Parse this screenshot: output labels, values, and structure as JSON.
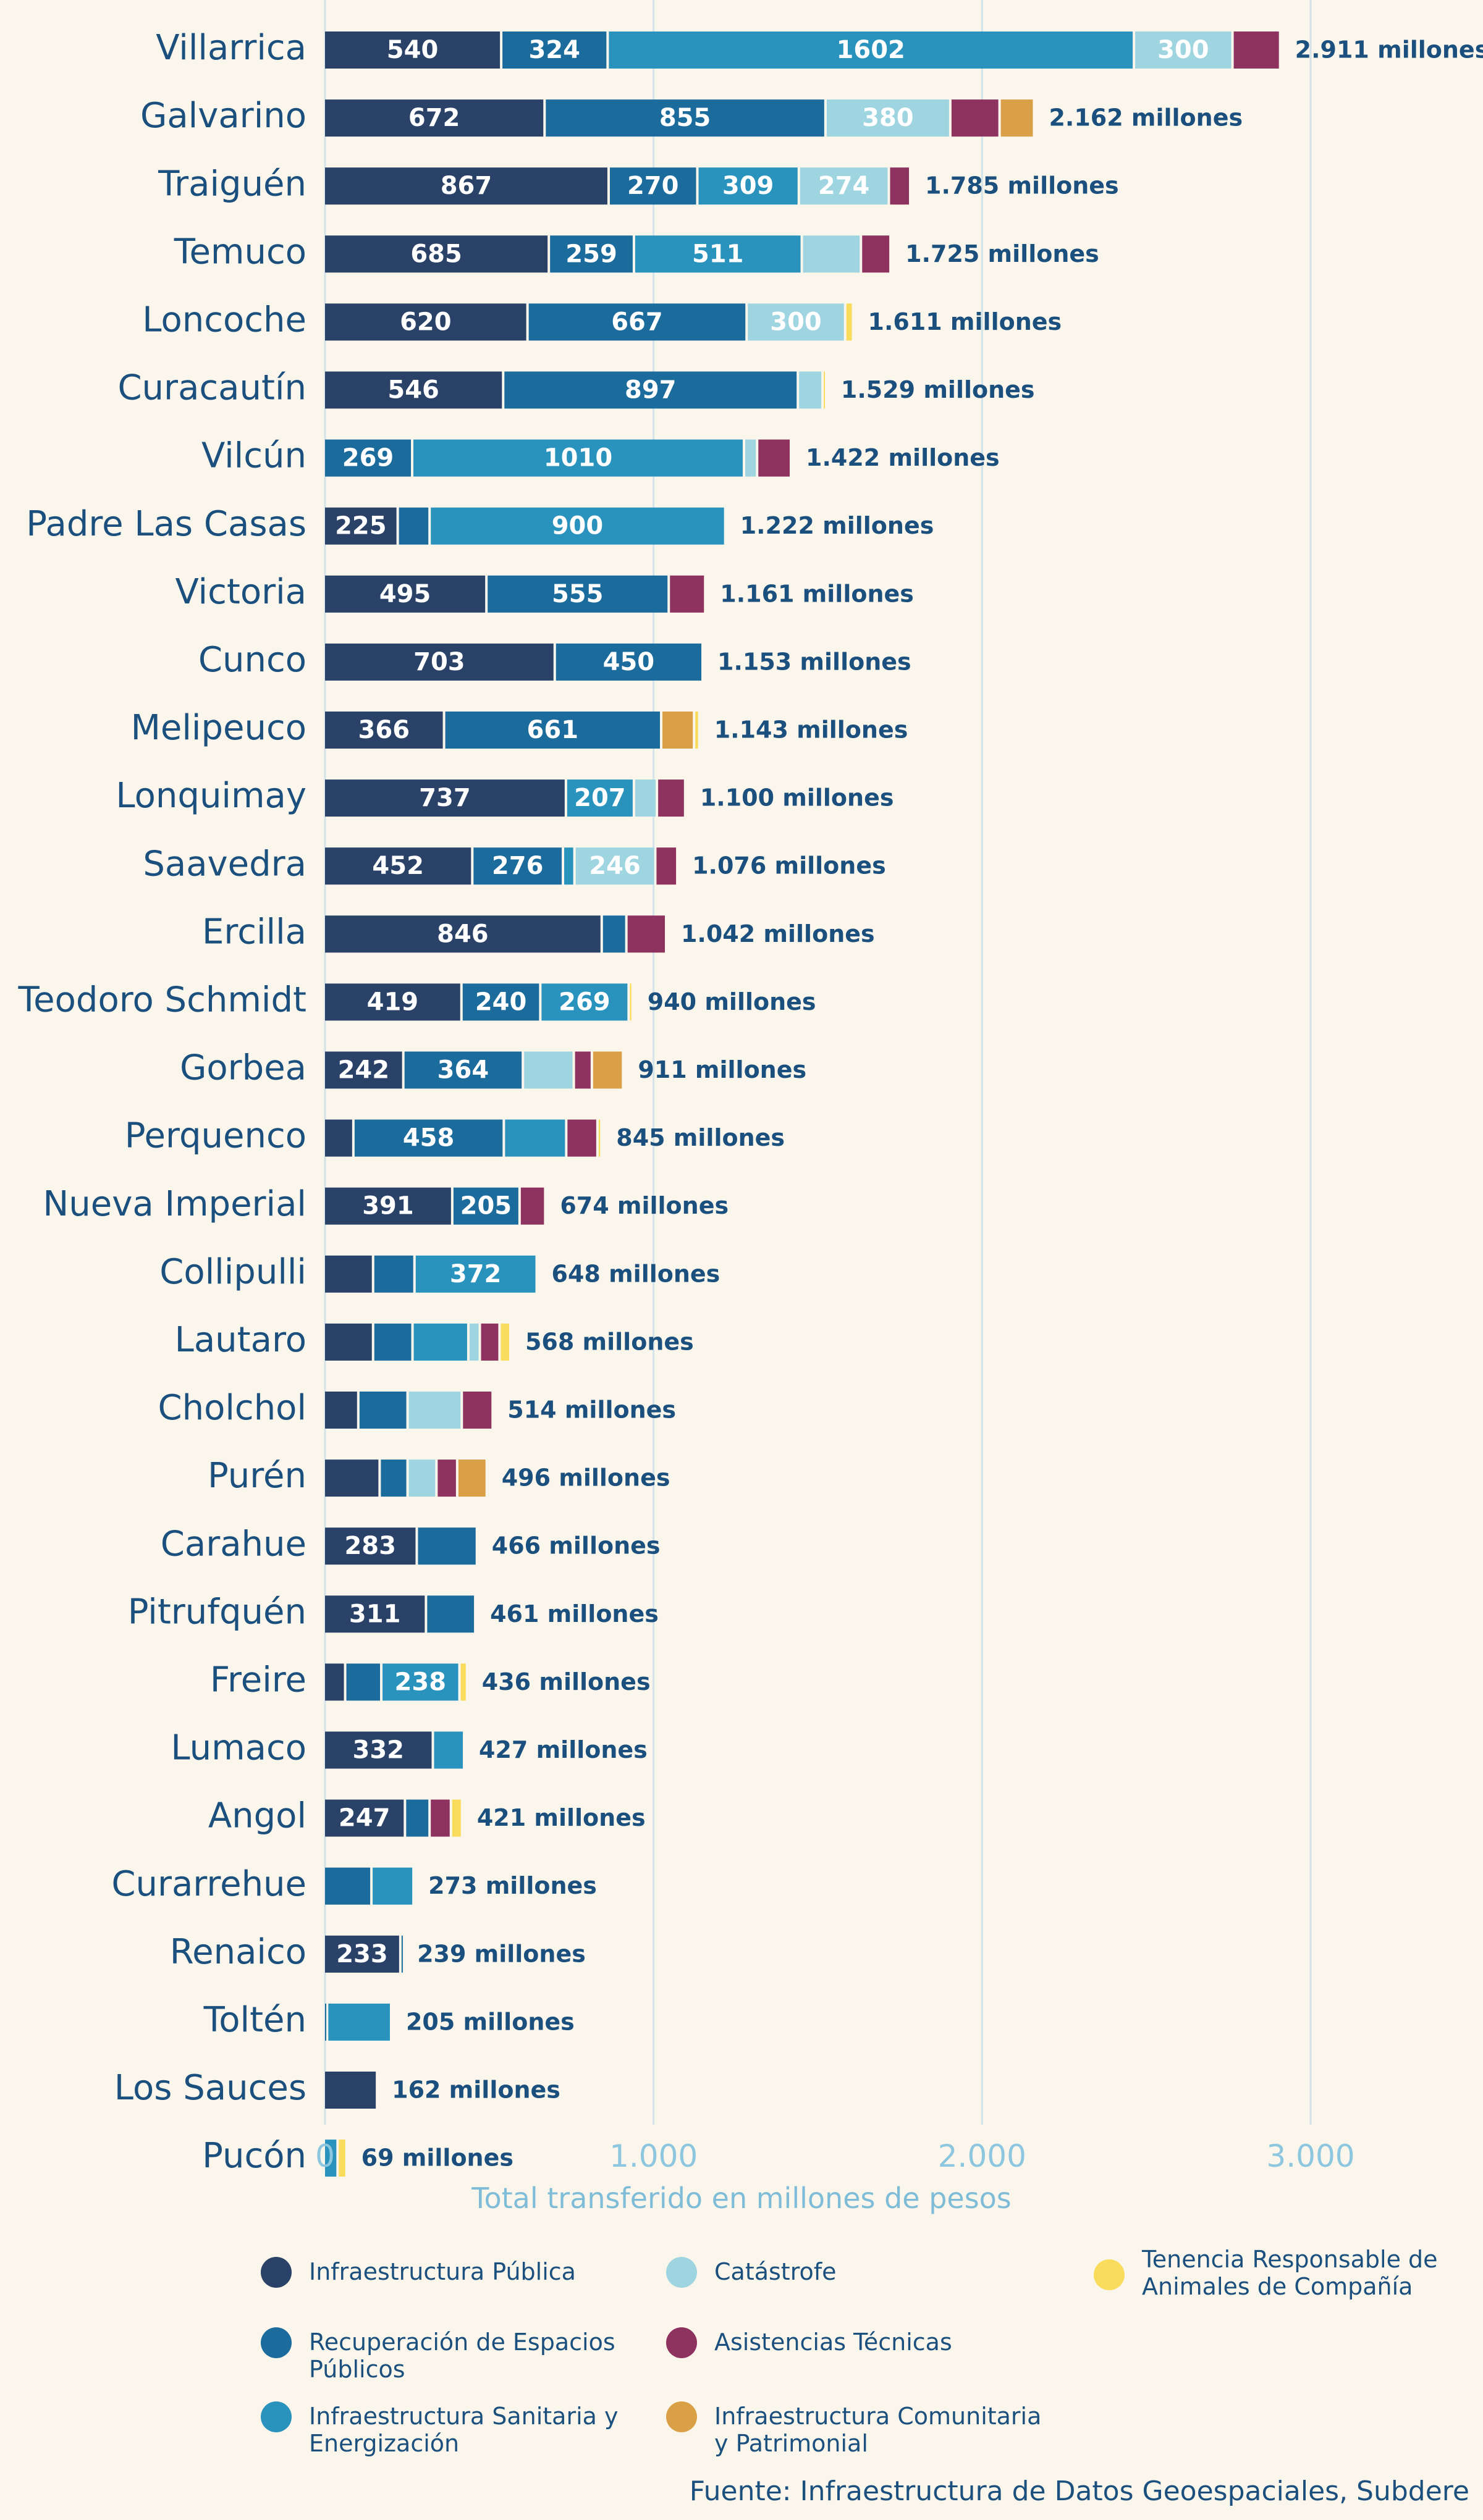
{
  "chart_data": {
    "type": "bar",
    "orientation": "horizontal",
    "stacked": true,
    "xlabel": "Total transferido en millones de pesos",
    "xlim": [
      0,
      3000
    ],
    "xticks": [
      "0",
      "1.000",
      "2.000",
      "3.000"
    ],
    "xtick_values": [
      0,
      1000,
      2000,
      3000
    ],
    "grid": true,
    "legend_position": "bottom",
    "series": [
      {
        "name": "Infraestructura Pública",
        "color": "#2b4268"
      },
      {
        "name": "Recuperación de Espacios Públicos",
        "color": "#1b6b9c"
      },
      {
        "name": "Infraestructura Sanitaria y Energización",
        "color": "#2a93bd"
      },
      {
        "name": "Catástrofe",
        "color": "#9fd5e0"
      },
      {
        "name": "Asistencias Técnicas",
        "color": "#8e325f"
      },
      {
        "name": "Infraestructura Comunitaria y Patrimonial",
        "color": "#d9a048"
      },
      {
        "name": "Tenencia Responsable de Animales de Compañía",
        "color": "#f9dc5c"
      }
    ],
    "rows": [
      {
        "name": "Villarrica",
        "values": [
          540,
          324,
          1602,
          300,
          145,
          0,
          0
        ],
        "total": "2.911 millones"
      },
      {
        "name": "Galvarino",
        "values": [
          672,
          855,
          0,
          380,
          150,
          105,
          0
        ],
        "total": "2.162 millones"
      },
      {
        "name": "Traiguén",
        "values": [
          867,
          270,
          309,
          274,
          65,
          0,
          0
        ],
        "total": "1.785 millones"
      },
      {
        "name": "Temuco",
        "values": [
          685,
          259,
          511,
          180,
          90,
          0,
          0
        ],
        "total": "1.725 millones"
      },
      {
        "name": "Loncoche",
        "values": [
          620,
          667,
          0,
          300,
          0,
          0,
          24
        ],
        "total": "1.611 millones"
      },
      {
        "name": "Curacautín",
        "values": [
          546,
          897,
          0,
          75,
          0,
          0,
          11
        ],
        "total": "1.529 millones"
      },
      {
        "name": "Vilcún",
        "values": [
          0,
          269,
          1010,
          40,
          103,
          0,
          0
        ],
        "total": "1.422 millones"
      },
      {
        "name": "Padre Las Casas",
        "values": [
          225,
          97,
          900,
          0,
          0,
          0,
          0
        ],
        "total": "1.222 millones"
      },
      {
        "name": "Victoria",
        "values": [
          495,
          555,
          0,
          0,
          111,
          0,
          0
        ],
        "total": "1.161 millones"
      },
      {
        "name": "Cunco",
        "values": [
          703,
          450,
          0,
          0,
          0,
          0,
          0
        ],
        "total": "1.153 millones"
      },
      {
        "name": "Melipeuco",
        "values": [
          366,
          661,
          0,
          0,
          0,
          100,
          16
        ],
        "total": "1.143 millones"
      },
      {
        "name": "Lonquimay",
        "values": [
          737,
          0,
          207,
          70,
          86,
          0,
          0
        ],
        "total": "1.100 millones"
      },
      {
        "name": "Saavedra",
        "values": [
          452,
          276,
          35,
          246,
          67,
          0,
          0
        ],
        "total": "1.076 millones"
      },
      {
        "name": "Ercilla",
        "values": [
          846,
          75,
          0,
          0,
          121,
          0,
          0
        ],
        "total": "1.042 millones"
      },
      {
        "name": "Teodoro Schmidt",
        "values": [
          419,
          240,
          269,
          0,
          0,
          0,
          12
        ],
        "total": "940 millones"
      },
      {
        "name": "Gorbea",
        "values": [
          242,
          364,
          0,
          155,
          55,
          95,
          0
        ],
        "total": "911 millones"
      },
      {
        "name": "Perquenco",
        "values": [
          90,
          458,
          190,
          0,
          95,
          0,
          12
        ],
        "total": "845 millones"
      },
      {
        "name": "Nueva Imperial",
        "values": [
          391,
          205,
          0,
          0,
          78,
          0,
          0
        ],
        "total": "674 millones"
      },
      {
        "name": "Collipulli",
        "values": [
          150,
          126,
          372,
          0,
          0,
          0,
          0
        ],
        "total": "648 millones"
      },
      {
        "name": "Lautaro",
        "values": [
          150,
          120,
          170,
          35,
          60,
          0,
          33
        ],
        "total": "568 millones"
      },
      {
        "name": "Cholchol",
        "values": [
          105,
          150,
          0,
          165,
          94,
          0,
          0
        ],
        "total": "514 millones"
      },
      {
        "name": "Purén",
        "values": [
          170,
          85,
          0,
          88,
          63,
          90,
          0
        ],
        "total": "496 millones"
      },
      {
        "name": "Carahue",
        "values": [
          283,
          183,
          0,
          0,
          0,
          0,
          0
        ],
        "total": "466 millones"
      },
      {
        "name": "Pitrufquén",
        "values": [
          311,
          150,
          0,
          0,
          0,
          0,
          0
        ],
        "total": "461 millones"
      },
      {
        "name": "Freire",
        "values": [
          65,
          110,
          238,
          0,
          0,
          0,
          23
        ],
        "total": "436 millones"
      },
      {
        "name": "Lumaco",
        "values": [
          332,
          0,
          95,
          0,
          0,
          0,
          0
        ],
        "total": "427 millones"
      },
      {
        "name": "Angol",
        "values": [
          247,
          75,
          0,
          0,
          65,
          0,
          34
        ],
        "total": "421 millones"
      },
      {
        "name": "Curarrehue",
        "values": [
          0,
          145,
          128,
          0,
          0,
          0,
          0
        ],
        "total": "273 millones"
      },
      {
        "name": "Renaico",
        "values": [
          233,
          6,
          0,
          0,
          0,
          0,
          0
        ],
        "total": "239 millones"
      },
      {
        "name": "Toltén",
        "values": [
          0,
          10,
          195,
          0,
          0,
          0,
          0
        ],
        "total": "205 millones"
      },
      {
        "name": "Los Sauces",
        "values": [
          162,
          0,
          0,
          0,
          0,
          0,
          0
        ],
        "total": "162 millones"
      },
      {
        "name": "Pucón",
        "values": [
          0,
          0,
          42,
          0,
          0,
          0,
          27
        ],
        "total": "69 millones"
      }
    ]
  },
  "source": "Fuente: Infraestructura de Datos Geoespaciales, Subdere"
}
